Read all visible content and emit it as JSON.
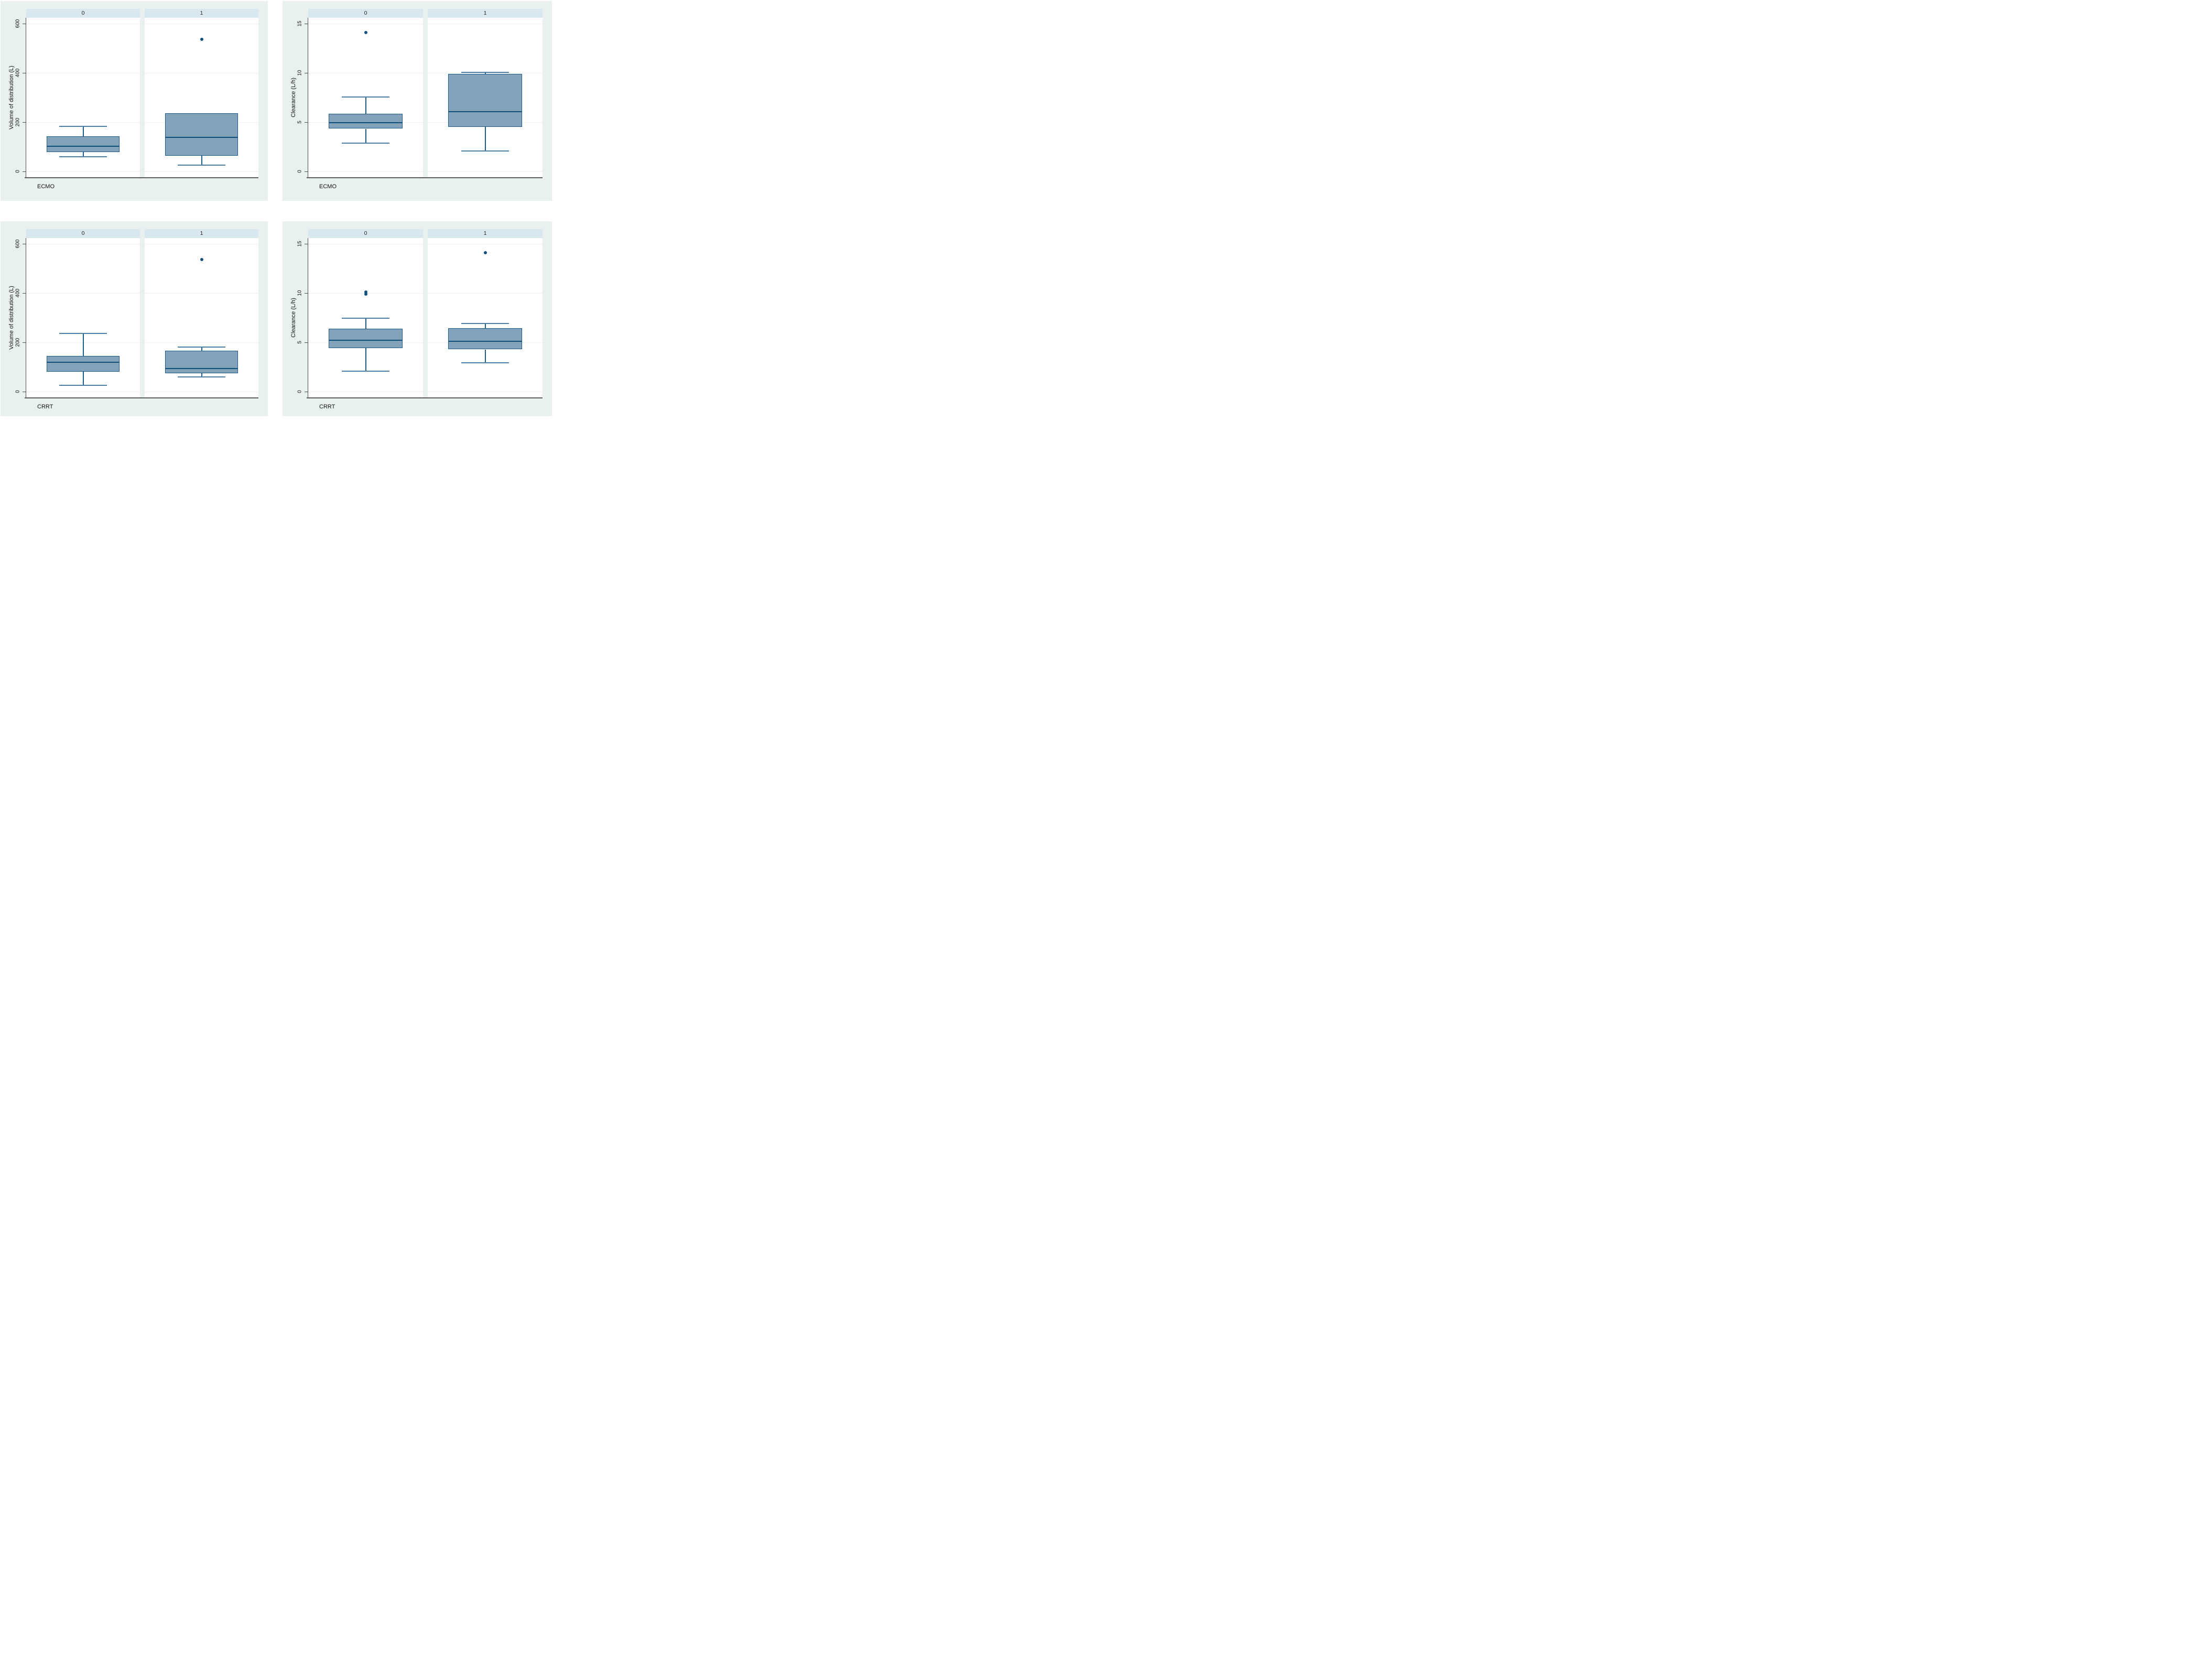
{
  "page": {
    "background": "#ffffff",
    "figure_background": "#e8f1f0",
    "panel_header_background": "#d9e7ee",
    "plot_background": "#ffffff",
    "gridline_color": "#ecf1f5",
    "box_fill_color": "#84a3ba",
    "box_border_color": "#1a5a86",
    "median_color": "#0f4f7e",
    "whisker_color": "#1c5d8a",
    "outlier_color": "#10507e",
    "axis_color": "#4f4f4f"
  },
  "chart_data": [
    {
      "id": "vd-by-ecmo",
      "type": "box",
      "title": "",
      "xlabel": "ECMO",
      "ylabel": "Volume of distribution (L)",
      "ylim": [
        0,
        600
      ],
      "yticks": [
        0,
        200,
        400,
        600
      ],
      "ytick_labels": [
        "0",
        "200",
        "400",
        "600"
      ],
      "grid": true,
      "categories": [
        "0",
        "1"
      ],
      "series": [
        {
          "category": "0",
          "whisker_low": 60,
          "q1": 80,
          "median": 102,
          "q3": 144,
          "whisker_high": 185,
          "outliers": []
        },
        {
          "category": "1",
          "whisker_low": 27,
          "q1": 65,
          "median": 140,
          "q3": 238,
          "whisker_high": 238,
          "outliers": [
            537
          ]
        }
      ]
    },
    {
      "id": "clearance-by-ecmo",
      "type": "box",
      "title": "",
      "xlabel": "ECMO",
      "ylabel": "Clearance (L/h)",
      "ylim": [
        0,
        15
      ],
      "yticks": [
        0,
        5,
        10,
        15
      ],
      "ytick_labels": [
        "0",
        "5",
        "10",
        "15"
      ],
      "grid": true,
      "categories": [
        "0",
        "1"
      ],
      "series": [
        {
          "category": "0",
          "whisker_low": 2.9,
          "q1": 4.35,
          "median": 4.95,
          "q3": 5.85,
          "whisker_high": 7.6,
          "outliers": [
            14.1
          ]
        },
        {
          "category": "1",
          "whisker_low": 2.1,
          "q1": 4.55,
          "median": 6.1,
          "q3": 9.9,
          "whisker_high": 10.15,
          "outliers": []
        }
      ]
    },
    {
      "id": "vd-by-crrt",
      "type": "box",
      "title": "",
      "xlabel": "CRRT",
      "ylabel": "Volume of distribution (L)",
      "ylim": [
        0,
        600
      ],
      "yticks": [
        0,
        200,
        400,
        600
      ],
      "ytick_labels": [
        "0",
        "200",
        "400",
        "600"
      ],
      "grid": true,
      "categories": [
        "0",
        "1"
      ],
      "series": [
        {
          "category": "0",
          "whisker_low": 26,
          "q1": 81,
          "median": 121,
          "q3": 145,
          "whisker_high": 239,
          "outliers": []
        },
        {
          "category": "1",
          "whisker_low": 61,
          "q1": 75,
          "median": 95,
          "q3": 166,
          "whisker_high": 184,
          "outliers": [
            537
          ]
        }
      ]
    },
    {
      "id": "clearance-by-crrt",
      "type": "box",
      "title": "",
      "xlabel": "CRRT",
      "ylabel": "Clearance (L/h)",
      "ylim": [
        0,
        15
      ],
      "yticks": [
        0,
        5,
        10,
        15
      ],
      "ytick_labels": [
        "0",
        "5",
        "10",
        "15"
      ],
      "grid": true,
      "categories": [
        "0",
        "1"
      ],
      "series": [
        {
          "category": "0",
          "whisker_low": 2.1,
          "q1": 4.45,
          "median": 5.25,
          "q3": 6.4,
          "whisker_high": 7.5,
          "outliers": [
            9.9,
            10.1
          ]
        },
        {
          "category": "1",
          "whisker_low": 2.95,
          "q1": 4.3,
          "median": 5.1,
          "q3": 6.45,
          "whisker_high": 7.0,
          "outliers": [
            14.1
          ]
        }
      ]
    }
  ]
}
